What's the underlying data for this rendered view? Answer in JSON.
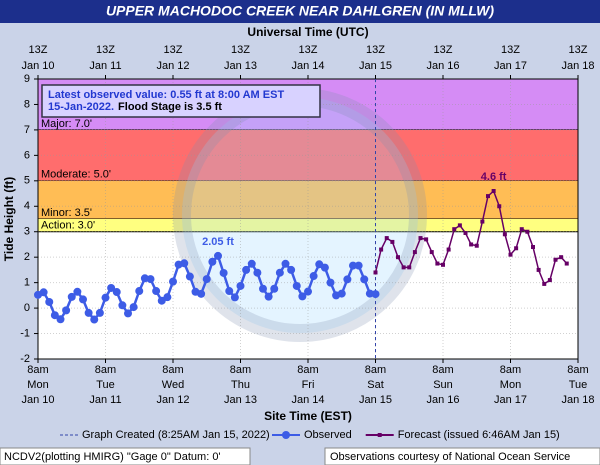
{
  "chart_data": {
    "type": "line",
    "title": "UPPER MACHODOC CREEK NEAR DAHLGREN (IN MLLW)",
    "x2_label": "Universal Time (UTC)",
    "x_label": "Site Time (EST)",
    "y_label": "Tide Height (ft)",
    "xlim": [
      "Jan 10 8am",
      "Jan 18 8am"
    ],
    "ylim": [
      -2,
      9
    ],
    "yticks": [
      -2,
      -1,
      0,
      1,
      2,
      3,
      4,
      5,
      6,
      7,
      8,
      9
    ],
    "grid": true,
    "xticks": [
      {
        "value": "Jan 10 8am",
        "label": [
          "8am",
          "Mon",
          "Jan 10"
        ]
      },
      {
        "value": "Jan 11 8am",
        "label": [
          "8am",
          "Tue",
          "Jan 11"
        ]
      },
      {
        "value": "Jan 12 8am",
        "label": [
          "8am",
          "Wed",
          "Jan 12"
        ]
      },
      {
        "value": "Jan 13 8am",
        "label": [
          "8am",
          "Thu",
          "Jan 13"
        ]
      },
      {
        "value": "Jan 14 8am",
        "label": [
          "8am",
          "Fri",
          "Jan 14"
        ]
      },
      {
        "value": "Jan 15 8am",
        "label": [
          "8am",
          "Sat",
          "Jan 15"
        ]
      },
      {
        "value": "Jan 16 8am",
        "label": [
          "8am",
          "Sun",
          "Jan 16"
        ]
      },
      {
        "value": "Jan 17 8am",
        "label": [
          "8am",
          "Mon",
          "Jan 17"
        ]
      },
      {
        "value": "Jan 18 8am",
        "label": [
          "8am",
          "Tue",
          "Jan 18"
        ]
      }
    ],
    "x2ticks": [
      {
        "value": "Jan 10 8am",
        "label": [
          "13Z",
          "Jan 10"
        ]
      },
      {
        "value": "Jan 11 8am",
        "label": [
          "13Z",
          "Jan 11"
        ]
      },
      {
        "value": "Jan 12 8am",
        "label": [
          "13Z",
          "Jan 12"
        ]
      },
      {
        "value": "Jan 13 8am",
        "label": [
          "13Z",
          "Jan 13"
        ]
      },
      {
        "value": "Jan 14 8am",
        "label": [
          "13Z",
          "Jan 14"
        ]
      },
      {
        "value": "Jan 15 8am",
        "label": [
          "13Z",
          "Jan 15"
        ]
      },
      {
        "value": "Jan 16 8am",
        "label": [
          "13Z",
          "Jan 16"
        ]
      },
      {
        "value": "Jan 17 8am",
        "label": [
          "13Z",
          "Jan 17"
        ]
      },
      {
        "value": "Jan 18 8am",
        "label": [
          "13Z",
          "Jan 18"
        ]
      }
    ],
    "bands": [
      {
        "label": "Major: 7.0'",
        "value": 7,
        "color": "#d58cf5"
      },
      {
        "label": "Moderate: 5.0'",
        "value": 5,
        "color": "#ff6d6d"
      },
      {
        "label": "Minor: 3.5'",
        "value": 3.5,
        "color": "#ffbd55"
      },
      {
        "label": "Action: 3.0'",
        "value": 3,
        "color": "#ffff80"
      }
    ],
    "info": {
      "lines": [
        "Latest observed value: 0.55 ft at 8:00 AM EST",
        "15-Jan-2022."
      ],
      "flood_stage": "Flood Stage is 3.5 ft"
    },
    "graph_created": {
      "label": "Graph Created (8:25AM Jan 15, 2022)",
      "x": "Jan 15 8am"
    },
    "series": [
      {
        "name": "Observed",
        "color": "#3d5ce6",
        "marker": "circle",
        "peak_label": "2.05 ft",
        "x": [
          "Jan 10 8am",
          "Jan 10 10am",
          "Jan 10 12pm",
          "Jan 10 2pm",
          "Jan 10 4pm",
          "Jan 10 6pm",
          "Jan 10 8pm",
          "Jan 10 10pm",
          "Jan 11 12am",
          "Jan 11 2am",
          "Jan 11 4am",
          "Jan 11 6am",
          "Jan 11 8am",
          "Jan 11 10am",
          "Jan 11 12pm",
          "Jan 11 2pm",
          "Jan 11 4pm",
          "Jan 11 6pm",
          "Jan 11 8pm",
          "Jan 11 10pm",
          "Jan 12 12am",
          "Jan 12 2am",
          "Jan 12 4am",
          "Jan 12 6am",
          "Jan 12 8am",
          "Jan 12 10am",
          "Jan 12 12pm",
          "Jan 12 2pm",
          "Jan 12 4pm",
          "Jan 12 6pm",
          "Jan 12 8pm",
          "Jan 12 10pm",
          "Jan 13 12am",
          "Jan 13 2am",
          "Jan 13 4am",
          "Jan 13 6am",
          "Jan 13 8am",
          "Jan 13 10am",
          "Jan 13 12pm",
          "Jan 13 2pm",
          "Jan 13 4pm",
          "Jan 13 6pm",
          "Jan 13 8pm",
          "Jan 13 10pm",
          "Jan 14 12am",
          "Jan 14 2am",
          "Jan 14 4am",
          "Jan 14 6am",
          "Jan 14 8am",
          "Jan 14 10am",
          "Jan 14 12pm",
          "Jan 14 2pm",
          "Jan 14 4pm",
          "Jan 14 6pm",
          "Jan 14 8pm",
          "Jan 14 10pm",
          "Jan 15 12am",
          "Jan 15 2am",
          "Jan 15 4am",
          "Jan 15 6am",
          "Jan 15 8am"
        ],
        "values": [
          0.52,
          0.62,
          0.24,
          -0.28,
          -0.44,
          -0.09,
          0.44,
          0.64,
          0.34,
          -0.19,
          -0.45,
          -0.19,
          0.41,
          0.79,
          0.63,
          0.11,
          -0.21,
          0.04,
          0.67,
          1.17,
          1.14,
          0.67,
          0.29,
          0.43,
          1.04,
          1.71,
          1.76,
          1.24,
          0.64,
          0.56,
          1.14,
          1.82,
          2.05,
          1.38,
          0.67,
          0.42,
          0.87,
          1.5,
          1.74,
          1.39,
          0.76,
          0.45,
          0.76,
          1.39,
          1.74,
          1.5,
          0.87,
          0.46,
          0.65,
          1.26,
          1.72,
          1.59,
          1.0,
          0.5,
          0.57,
          1.13,
          1.67,
          1.67,
          1.13,
          0.57,
          0.55
        ]
      },
      {
        "name": "Forecast (issued 6:46AM Jan 15)",
        "color": "#660066",
        "marker": "square",
        "peak_label": "4.6 ft",
        "x": [
          "Jan 15 8am",
          "Jan 15 10am",
          "Jan 15 12pm",
          "Jan 15 2pm",
          "Jan 15 4pm",
          "Jan 15 6pm",
          "Jan 15 8pm",
          "Jan 15 10pm",
          "Jan 16 12am",
          "Jan 16 2am",
          "Jan 16 4am",
          "Jan 16 6am",
          "Jan 16 8am",
          "Jan 16 10am",
          "Jan 16 12pm",
          "Jan 16 2pm",
          "Jan 16 4pm",
          "Jan 16 6pm",
          "Jan 16 8pm",
          "Jan 16 10pm",
          "Jan 17 12am",
          "Jan 17 2am",
          "Jan 17 4am",
          "Jan 17 6am",
          "Jan 17 8am",
          "Jan 17 10am",
          "Jan 17 12pm",
          "Jan 17 2pm",
          "Jan 17 4pm",
          "Jan 17 6pm",
          "Jan 17 8pm",
          "Jan 17 10pm",
          "Jan 18 12am",
          "Jan 18 2am",
          "Jan 18 4am"
        ],
        "values": [
          1.4,
          2.3,
          2.75,
          2.6,
          2.0,
          1.6,
          1.6,
          2.2,
          2.75,
          2.7,
          2.2,
          1.75,
          1.7,
          2.3,
          3.1,
          3.25,
          2.95,
          2.5,
          2.45,
          3.4,
          4.4,
          4.6,
          4.0,
          2.9,
          2.1,
          2.35,
          3.1,
          3.0,
          2.4,
          1.5,
          0.95,
          1.1,
          1.9,
          2.0,
          1.75
        ]
      }
    ],
    "footer": {
      "left": "NCDV2(plotting HMIRG) \"Gage 0\" Datum: 0'",
      "right": "Observations courtesy of National Ocean Service"
    }
  }
}
